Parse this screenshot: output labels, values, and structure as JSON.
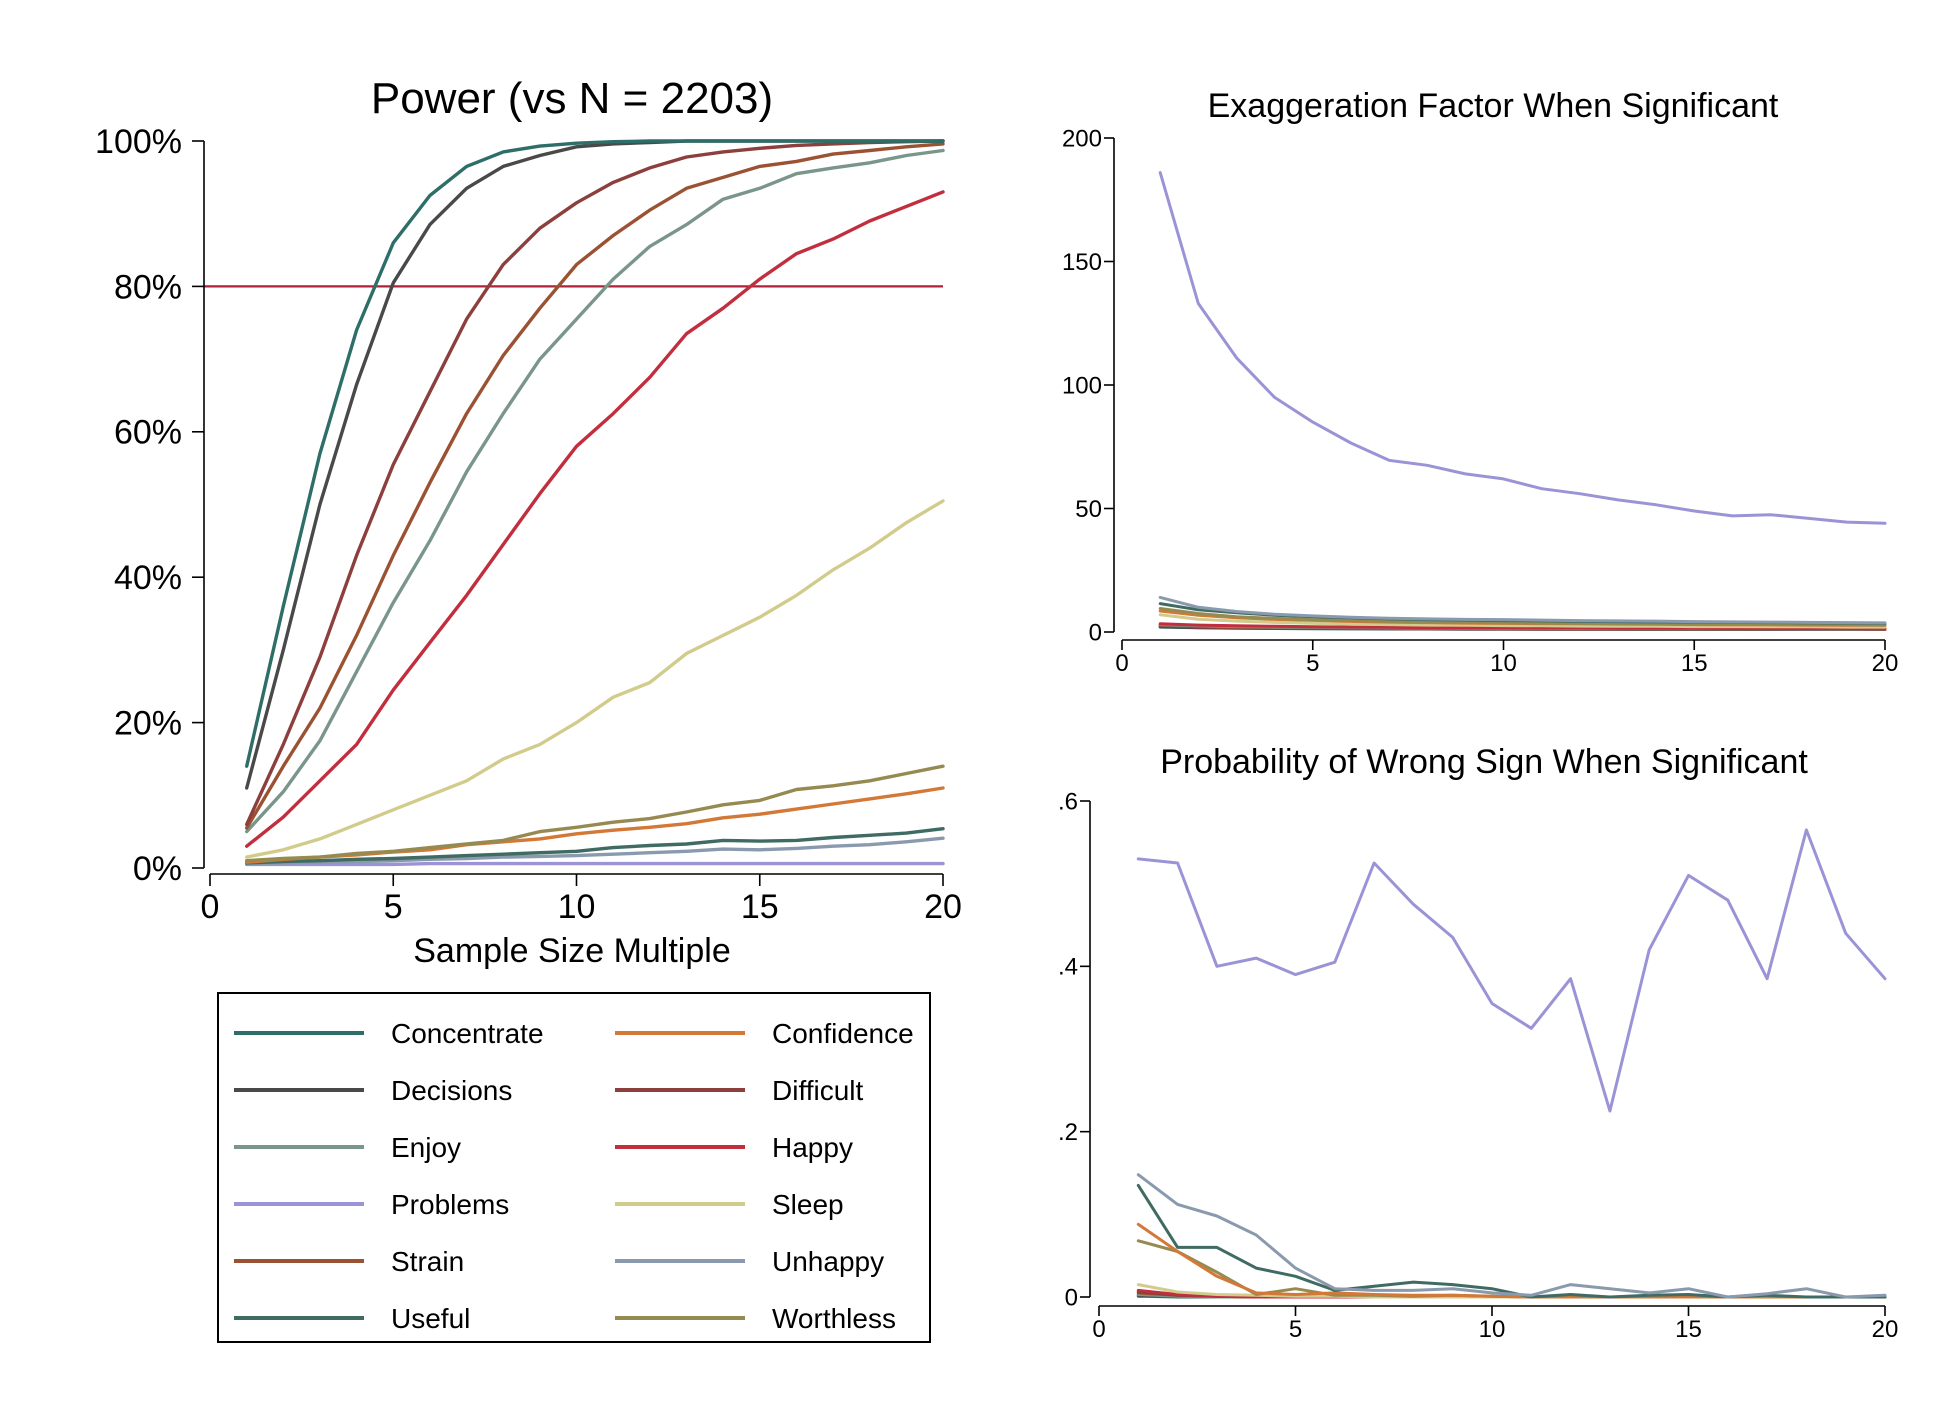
{
  "series_colors": {
    "Concentrate": "#2e6e69",
    "Decisions": "#494949",
    "Enjoy": "#7a958a",
    "Problems": "#9a94d6",
    "Strain": "#9b5233",
    "Useful": "#3f6b62",
    "Confidence": "#d37836",
    "Difficult": "#8c3f3c",
    "Happy": "#c12f3f",
    "Sleep": "#d2cc8c",
    "Unhappy": "#8a9aae",
    "Worthless": "#958b51"
  },
  "legend": {
    "items": [
      "Concentrate",
      "Confidence",
      "Decisions",
      "Difficult",
      "Enjoy",
      "Happy",
      "Problems",
      "Sleep",
      "Strain",
      "Unhappy",
      "Useful",
      "Worthless"
    ]
  },
  "chart_data": [
    {
      "id": "power",
      "type": "line",
      "title": "Power (vs N = 2203)",
      "xlabel": "Sample Size Multiple",
      "ylabel": "",
      "xlim": [
        0,
        20
      ],
      "ylim": [
        0,
        100
      ],
      "xticks": [
        0,
        5,
        10,
        15,
        20
      ],
      "yticks": [
        0,
        20,
        40,
        60,
        80,
        100
      ],
      "ytick_labels": [
        "0%",
        "20%",
        "40%",
        "60%",
        "80%",
        "100%"
      ],
      "reference_line": {
        "y": 80,
        "color": "#b0213a"
      },
      "x": [
        1,
        2,
        3,
        4,
        5,
        6,
        7,
        8,
        9,
        10,
        11,
        12,
        13,
        14,
        15,
        16,
        17,
        18,
        19,
        20
      ],
      "series": [
        {
          "name": "Concentrate",
          "values": [
            14,
            36,
            57,
            74,
            86,
            92.5,
            96.5,
            98.5,
            99.3,
            99.7,
            99.9,
            100,
            100,
            100,
            100,
            100,
            100,
            100,
            100,
            100
          ]
        },
        {
          "name": "Decisions",
          "values": [
            11,
            30,
            50,
            66.5,
            80.5,
            88.5,
            93.5,
            96.5,
            98,
            99.2,
            99.6,
            99.8,
            100,
            100,
            100,
            100,
            100,
            100,
            100,
            100
          ]
        },
        {
          "name": "Difficult",
          "values": [
            6,
            17,
            29,
            43,
            55.5,
            65.5,
            75.5,
            83,
            88,
            91.5,
            94.3,
            96.3,
            97.8,
            98.5,
            99,
            99.4,
            99.6,
            99.8,
            99.9,
            100
          ]
        },
        {
          "name": "Strain",
          "values": [
            5.5,
            14,
            22,
            32,
            43,
            53,
            62.5,
            70.5,
            77,
            83,
            87,
            90.5,
            93.5,
            95,
            96.5,
            97.2,
            98.2,
            98.7,
            99.2,
            99.6
          ]
        },
        {
          "name": "Enjoy",
          "values": [
            5,
            10.5,
            17.5,
            27,
            36.5,
            45,
            54.5,
            62.5,
            70,
            75.5,
            81,
            85.5,
            88.5,
            92,
            93.5,
            95.5,
            96.3,
            97,
            98,
            98.7
          ]
        },
        {
          "name": "Happy",
          "values": [
            3,
            7,
            12,
            17,
            24.5,
            31,
            37.5,
            44.5,
            51.5,
            58,
            62.5,
            67.5,
            73.5,
            77,
            81,
            84.5,
            86.5,
            89,
            91,
            93
          ]
        },
        {
          "name": "Sleep",
          "values": [
            1.5,
            2.5,
            4,
            6,
            8,
            10,
            12,
            15,
            17,
            20,
            23.5,
            25.5,
            29.5,
            32,
            34.5,
            37.5,
            41,
            44,
            47.5,
            50.5
          ]
        },
        {
          "name": "Worthless",
          "values": [
            1,
            1.3,
            1.5,
            2,
            2.3,
            2.8,
            3.3,
            3.8,
            5,
            5.6,
            6.3,
            6.8,
            7.7,
            8.7,
            9.3,
            10.8,
            11.3,
            12,
            13,
            14
          ]
        },
        {
          "name": "Confidence",
          "values": [
            0.8,
            1.2,
            1.5,
            1.8,
            2.2,
            2.5,
            3.2,
            3.6,
            4,
            4.7,
            5.2,
            5.6,
            6.1,
            6.9,
            7.4,
            8.1,
            8.8,
            9.5,
            10.2,
            11
          ]
        },
        {
          "name": "Useful",
          "values": [
            0.7,
            0.9,
            1,
            1.2,
            1.3,
            1.5,
            1.7,
            1.9,
            2.1,
            2.3,
            2.8,
            3.1,
            3.3,
            3.8,
            3.7,
            3.8,
            4.2,
            4.5,
            4.8,
            5.4
          ]
        },
        {
          "name": "Unhappy",
          "values": [
            0.6,
            0.7,
            0.8,
            0.9,
            1,
            1.2,
            1.3,
            1.5,
            1.6,
            1.7,
            1.9,
            2.1,
            2.3,
            2.6,
            2.5,
            2.7,
            3,
            3.2,
            3.6,
            4.1
          ]
        },
        {
          "name": "Problems",
          "values": [
            0.5,
            0.5,
            0.5,
            0.5,
            0.5,
            0.6,
            0.6,
            0.6,
            0.6,
            0.6,
            0.6,
            0.6,
            0.6,
            0.6,
            0.6,
            0.6,
            0.6,
            0.6,
            0.6,
            0.6
          ]
        }
      ]
    },
    {
      "id": "exaggeration",
      "type": "line",
      "title": "Exaggeration Factor When Significant",
      "xlabel": "",
      "ylabel": "",
      "xlim": [
        0,
        20
      ],
      "ylim": [
        0,
        200
      ],
      "xticks": [
        0,
        5,
        10,
        15,
        20
      ],
      "yticks": [
        0,
        50,
        100,
        150,
        200
      ],
      "ytick_labels": [
        "0",
        "50",
        "100",
        "150",
        "200"
      ],
      "x": [
        1,
        2,
        3,
        4,
        5,
        6,
        7,
        8,
        9,
        10,
        11,
        12,
        13,
        14,
        15,
        16,
        17,
        18,
        19,
        20
      ],
      "series": [
        {
          "name": "Problems",
          "values": [
            186,
            133,
            111,
            95,
            85,
            76.5,
            69.5,
            67.5,
            64,
            62,
            58,
            56,
            53.5,
            51.5,
            49,
            47,
            47.5,
            46,
            44.5,
            44
          ]
        },
        {
          "name": "Unhappy",
          "values": [
            14,
            10,
            8.3,
            7.2,
            6.5,
            6,
            5.6,
            5.3,
            5.1,
            5,
            4.8,
            4.6,
            4.5,
            4.4,
            4.2,
            4.1,
            4,
            3.9,
            3.8,
            3.7
          ]
        },
        {
          "name": "Useful",
          "values": [
            11.5,
            9,
            7.8,
            6.8,
            6.2,
            5.7,
            5.3,
            5,
            4.8,
            4.6,
            4.5,
            4.3,
            4.2,
            4.1,
            4,
            3.9,
            3.8,
            3.7,
            3.6,
            3.5
          ]
        },
        {
          "name": "Worthless",
          "values": [
            9.5,
            7.5,
            6.2,
            5.5,
            5,
            4.6,
            4.3,
            4.1,
            3.9,
            3.7,
            3.6,
            3.5,
            3.4,
            3.3,
            3.2,
            3.1,
            3,
            2.9,
            2.9,
            2.8
          ]
        },
        {
          "name": "Confidence",
          "values": [
            8.5,
            6.8,
            5.8,
            5.1,
            4.7,
            4.3,
            4,
            3.8,
            3.6,
            3.5,
            3.4,
            3.3,
            3.2,
            3.1,
            3,
            2.9,
            2.9,
            2.8,
            2.7,
            2.7
          ]
        },
        {
          "name": "Sleep",
          "values": [
            7,
            5.2,
            4.4,
            3.9,
            3.5,
            3.2,
            3,
            2.8,
            2.7,
            2.6,
            2.5,
            2.4,
            2.3,
            2.3,
            2.2,
            2.2,
            2.1,
            2.1,
            2,
            2
          ]
        },
        {
          "name": "Happy",
          "values": [
            3.3,
            2.8,
            2.5,
            2.3,
            2.1,
            2,
            1.9,
            1.8,
            1.7,
            1.7,
            1.6,
            1.6,
            1.5,
            1.5,
            1.5,
            1.4,
            1.4,
            1.4,
            1.4,
            1.3
          ]
        },
        {
          "name": "Enjoy",
          "values": [
            3,
            2.5,
            2.2,
            2,
            1.9,
            1.8,
            1.7,
            1.6,
            1.5,
            1.5,
            1.4,
            1.4,
            1.4,
            1.3,
            1.3,
            1.3,
            1.3,
            1.2,
            1.2,
            1.2
          ]
        },
        {
          "name": "Strain",
          "values": [
            2.8,
            2.3,
            2,
            1.8,
            1.7,
            1.6,
            1.5,
            1.5,
            1.4,
            1.4,
            1.3,
            1.3,
            1.3,
            1.2,
            1.2,
            1.2,
            1.2,
            1.2,
            1.1,
            1.1
          ]
        },
        {
          "name": "Difficult",
          "values": [
            2.5,
            2,
            1.8,
            1.6,
            1.5,
            1.4,
            1.4,
            1.3,
            1.3,
            1.2,
            1.2,
            1.2,
            1.2,
            1.1,
            1.1,
            1.1,
            1.1,
            1.1,
            1.1,
            1.1
          ]
        },
        {
          "name": "Decisions",
          "values": [
            2.2,
            1.8,
            1.6,
            1.5,
            1.4,
            1.3,
            1.3,
            1.2,
            1.2,
            1.2,
            1.1,
            1.1,
            1.1,
            1.1,
            1.1,
            1.1,
            1.1,
            1,
            1,
            1
          ]
        },
        {
          "name": "Concentrate",
          "values": [
            2,
            1.7,
            1.5,
            1.4,
            1.3,
            1.3,
            1.2,
            1.2,
            1.1,
            1.1,
            1.1,
            1.1,
            1.1,
            1,
            1,
            1,
            1,
            1,
            1,
            1
          ]
        }
      ]
    },
    {
      "id": "wrong-sign",
      "type": "line",
      "title": "Probability of Wrong Sign When Significant",
      "xlabel": "",
      "ylabel": "",
      "xlim": [
        0,
        20
      ],
      "ylim": [
        0,
        0.6
      ],
      "xticks": [
        0,
        5,
        10,
        15,
        20
      ],
      "yticks": [
        0,
        0.2,
        0.4,
        0.6
      ],
      "ytick_labels": [
        "0",
        ".2",
        ".4",
        ".6"
      ],
      "x": [
        1,
        2,
        3,
        4,
        5,
        6,
        7,
        8,
        9,
        10,
        11,
        12,
        13,
        14,
        15,
        16,
        17,
        18,
        19,
        20
      ],
      "series": [
        {
          "name": "Problems",
          "values": [
            0.53,
            0.525,
            0.4,
            0.41,
            0.39,
            0.405,
            0.525,
            0.475,
            0.435,
            0.355,
            0.325,
            0.385,
            0.225,
            0.42,
            0.51,
            0.48,
            0.385,
            0.565,
            0.44,
            0.385
          ]
        },
        {
          "name": "Unhappy",
          "values": [
            0.148,
            0.112,
            0.098,
            0.075,
            0.035,
            0.01,
            0.008,
            0.008,
            0.01,
            0.005,
            0.002,
            0.015,
            0.01,
            0.005,
            0.01,
            0,
            0.004,
            0.01,
            0,
            0.002
          ]
        },
        {
          "name": "Useful",
          "values": [
            0.135,
            0.06,
            0.06,
            0.035,
            0.025,
            0.008,
            0.013,
            0.018,
            0.015,
            0.01,
            0,
            0.003,
            0,
            0.002,
            0.003,
            0,
            0.002,
            0,
            0,
            0
          ]
        },
        {
          "name": "Confidence",
          "values": [
            0.088,
            0.055,
            0.025,
            0.005,
            0.003,
            0.005,
            0.003,
            0.002,
            0.002,
            0.001,
            0,
            0,
            0,
            0,
            0,
            0,
            0,
            0,
            0,
            0
          ]
        },
        {
          "name": "Worthless",
          "values": [
            0.068,
            0.055,
            0.03,
            0.003,
            0.01,
            0.002,
            0.002,
            0.001,
            0.002,
            0.001,
            0,
            0,
            0,
            0,
            0,
            0,
            0,
            0,
            0,
            0
          ]
        },
        {
          "name": "Sleep",
          "values": [
            0.015,
            0.006,
            0.003,
            0.002,
            0.001,
            0.001,
            0,
            0,
            0,
            0,
            0,
            0,
            0,
            0,
            0,
            0,
            0,
            0,
            0,
            0
          ]
        },
        {
          "name": "Happy",
          "values": [
            0.008,
            0.003,
            0.001,
            0,
            0,
            0,
            0,
            0,
            0,
            0,
            0,
            0,
            0,
            0,
            0,
            0,
            0,
            0,
            0,
            0
          ]
        },
        {
          "name": "Difficult",
          "values": [
            0.006,
            0.002,
            0.001,
            0,
            0,
            0,
            0,
            0,
            0,
            0,
            0,
            0,
            0,
            0,
            0,
            0,
            0,
            0,
            0,
            0
          ]
        },
        {
          "name": "Strain",
          "values": [
            0.005,
            0.002,
            0.001,
            0,
            0,
            0,
            0,
            0,
            0,
            0,
            0,
            0,
            0,
            0,
            0,
            0,
            0,
            0,
            0,
            0
          ]
        },
        {
          "name": "Enjoy",
          "values": [
            0.003,
            0.001,
            0,
            0,
            0,
            0,
            0,
            0,
            0,
            0,
            0,
            0,
            0,
            0,
            0,
            0,
            0,
            0,
            0,
            0
          ]
        },
        {
          "name": "Decisions",
          "values": [
            0.002,
            0.001,
            0,
            0,
            0,
            0,
            0,
            0,
            0,
            0,
            0,
            0,
            0,
            0,
            0,
            0,
            0,
            0,
            0,
            0
          ]
        },
        {
          "name": "Concentrate",
          "values": [
            0.001,
            0,
            0,
            0,
            0,
            0,
            0,
            0,
            0,
            0,
            0,
            0,
            0,
            0,
            0,
            0,
            0,
            0,
            0,
            0
          ]
        }
      ]
    }
  ]
}
